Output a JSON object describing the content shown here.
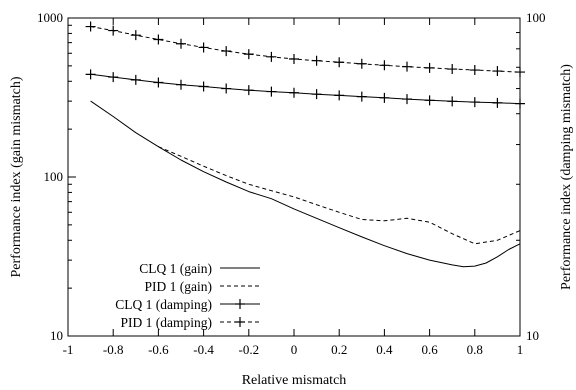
{
  "chart_data": {
    "type": "line",
    "xlabel": "Relative mismatch",
    "ylabel_left": "Performance index (gain mismatch)",
    "ylabel_right": "Performance index (damping mismatch)",
    "xlim": [
      -1,
      1
    ],
    "ylim_left": [
      10,
      1000
    ],
    "ylim_right": [
      10,
      100
    ],
    "yscale": "log",
    "grid": false,
    "legend_position": "bottom-left",
    "x_ticks": [
      "-1",
      "-0.8",
      "-0.6",
      "-0.4",
      "-0.2",
      "0",
      "0.2",
      "0.4",
      "0.6",
      "0.8",
      "1"
    ],
    "y_ticks_left": [
      "10",
      "100",
      "1000"
    ],
    "y_ticks_right": [
      "10",
      "100"
    ],
    "series": [
      {
        "name": "CLQ 1 (gain)",
        "axis": "left",
        "style": "solid",
        "points": [
          [
            -0.9,
            300
          ],
          [
            -0.8,
            240
          ],
          [
            -0.7,
            190
          ],
          [
            -0.6,
            155
          ],
          [
            -0.5,
            128
          ],
          [
            -0.4,
            108
          ],
          [
            -0.3,
            93
          ],
          [
            -0.2,
            81
          ],
          [
            -0.1,
            73
          ],
          [
            0,
            63
          ],
          [
            0.1,
            55
          ],
          [
            0.2,
            48
          ],
          [
            0.3,
            42
          ],
          [
            0.4,
            37
          ],
          [
            0.5,
            33
          ],
          [
            0.6,
            30
          ],
          [
            0.7,
            28
          ],
          [
            0.75,
            27.3
          ],
          [
            0.8,
            27.5
          ],
          [
            0.85,
            28.8
          ],
          [
            0.9,
            31.5
          ],
          [
            0.95,
            35
          ],
          [
            1.0,
            38
          ]
        ]
      },
      {
        "name": "PID 1 (gain)",
        "axis": "left",
        "style": "dashed",
        "points": [
          [
            -0.6,
            155
          ],
          [
            -0.5,
            135
          ],
          [
            -0.4,
            117
          ],
          [
            -0.3,
            102
          ],
          [
            -0.2,
            90
          ],
          [
            -0.1,
            82
          ],
          [
            0,
            75
          ],
          [
            0.1,
            67
          ],
          [
            0.2,
            60
          ],
          [
            0.3,
            54
          ],
          [
            0.4,
            53
          ],
          [
            0.5,
            55
          ],
          [
            0.6,
            52
          ],
          [
            0.7,
            44
          ],
          [
            0.8,
            38
          ],
          [
            0.9,
            40
          ],
          [
            1.0,
            46
          ]
        ]
      },
      {
        "name": "CLQ 1 (damping)",
        "axis": "right",
        "style": "solid-plus",
        "points": [
          [
            -0.9,
            66.5
          ],
          [
            -0.8,
            65.2
          ],
          [
            -0.7,
            63.9
          ],
          [
            -0.6,
            62.7
          ],
          [
            -0.5,
            61.7
          ],
          [
            -0.4,
            60.9
          ],
          [
            -0.3,
            60.0
          ],
          [
            -0.2,
            59.3
          ],
          [
            -0.1,
            58.7
          ],
          [
            0,
            58.2
          ],
          [
            0.1,
            57.6
          ],
          [
            0.2,
            57.1
          ],
          [
            0.3,
            56.6
          ],
          [
            0.4,
            56.1
          ],
          [
            0.5,
            55.6
          ],
          [
            0.6,
            55.1
          ],
          [
            0.7,
            54.7
          ],
          [
            0.8,
            54.4
          ],
          [
            0.9,
            54.1
          ],
          [
            1.0,
            53.8
          ]
        ]
      },
      {
        "name": "PID 1 (damping)",
        "axis": "right",
        "style": "dashed-plus",
        "points": [
          [
            -0.9,
            94.0
          ],
          [
            -0.8,
            91.3
          ],
          [
            -0.7,
            88.3
          ],
          [
            -0.6,
            85.6
          ],
          [
            -0.5,
            83.0
          ],
          [
            -0.4,
            80.8
          ],
          [
            -0.3,
            78.7
          ],
          [
            -0.2,
            77.0
          ],
          [
            -0.1,
            75.5
          ],
          [
            0,
            74.3
          ],
          [
            0.1,
            73.4
          ],
          [
            0.2,
            72.6
          ],
          [
            0.3,
            71.8
          ],
          [
            0.4,
            71.0
          ],
          [
            0.5,
            70.3
          ],
          [
            0.6,
            69.7
          ],
          [
            0.7,
            69.1
          ],
          [
            0.8,
            68.6
          ],
          [
            0.9,
            68.1
          ],
          [
            1.0,
            67.6
          ]
        ]
      }
    ]
  }
}
